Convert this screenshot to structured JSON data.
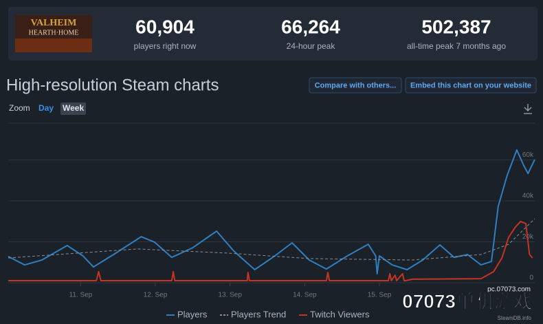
{
  "stats": {
    "game_image": {
      "line1": "VALHEIM",
      "line2": "HEARTH·HOME"
    },
    "items": [
      {
        "value": "60,904",
        "label": "players right now"
      },
      {
        "value": "66,264",
        "label": "24-hour peak"
      },
      {
        "value": "502,387",
        "label": "all-time peak 7 months ago"
      }
    ]
  },
  "toolbar": {
    "heading": "High-resolution Steam charts",
    "buttons": [
      "Compare with others...",
      "Embed this chart on your website"
    ],
    "zoom": "Zoom",
    "zoom_options": [
      "Day",
      "Week"
    ]
  },
  "watermark": {
    "site": "pc.07073.com",
    "brand": "07073单机游戏"
  },
  "chart_data": {
    "type": "line",
    "credit": "SteamDB.info",
    "xlim": [
      10.03,
      17.08
    ],
    "xticks": [
      {
        "value": 11,
        "label": "11. Sep"
      },
      {
        "value": 12,
        "label": "12. Sep"
      },
      {
        "value": 13,
        "label": "13. Sep"
      },
      {
        "value": 14,
        "label": "14. Sep"
      },
      {
        "value": 15,
        "label": "15. Sep"
      }
    ],
    "ylim": [
      0,
      78000
    ],
    "yticks": [
      0,
      {
        "value": 20000,
        "label": "20k"
      },
      {
        "value": 40000,
        "label": "40k"
      },
      {
        "value": 60000,
        "label": "60k"
      }
    ],
    "grid": true,
    "series": [
      {
        "name": "Players",
        "color": "#2f7fc1",
        "style": "solid",
        "x": [
          10.03,
          10.25,
          10.48,
          10.82,
          11.03,
          11.17,
          11.44,
          11.81,
          11.99,
          12.22,
          12.5,
          12.82,
          13.05,
          13.33,
          13.6,
          13.83,
          14.06,
          14.29,
          14.57,
          14.85,
          14.95,
          14.97,
          15.0,
          15.17,
          15.37,
          15.58,
          15.81,
          16.0,
          16.18,
          16.36,
          16.5,
          16.59,
          16.71,
          16.84,
          16.93,
          16.99,
          17.08
        ],
        "values": [
          12800,
          8700,
          11100,
          18200,
          13100,
          7700,
          13800,
          22500,
          19800,
          12400,
          17100,
          25200,
          15500,
          6400,
          13100,
          19500,
          11100,
          6700,
          13100,
          18800,
          13100,
          4400,
          13100,
          8700,
          6400,
          11100,
          18500,
          12400,
          13800,
          8700,
          10400,
          37300,
          52400,
          64900,
          57500,
          53400,
          60200
        ]
      },
      {
        "name": "Players Trend",
        "color": "#8a8f96",
        "style": "dashed",
        "x": [
          10.03,
          11.76,
          12.96,
          14.06,
          15.44,
          16.36,
          16.73,
          17.08
        ],
        "values": [
          12100,
          16500,
          14500,
          11800,
          11100,
          13800,
          18800,
          31300
        ]
      },
      {
        "name": "Twitch Viewers",
        "color": "#c8341f",
        "style": "solid",
        "x": [
          10.03,
          11.21,
          11.24,
          11.27,
          12.22,
          12.24,
          12.26,
          13.23,
          13.24,
          13.26,
          14.29,
          14.31,
          14.33,
          15.12,
          15.14,
          15.16,
          15.21,
          15.23,
          15.31,
          15.33,
          15.35,
          15.44,
          16.36,
          16.53,
          16.64,
          16.73,
          16.82,
          16.89,
          16.96,
          17.01,
          17.05
        ],
        "values": [
          1000,
          1000,
          5400,
          1000,
          1000,
          5400,
          1000,
          1000,
          5000,
          1000,
          1000,
          5000,
          1000,
          1000,
          4400,
          1000,
          3700,
          1000,
          4400,
          1000,
          1000,
          1700,
          2000,
          5400,
          12100,
          22200,
          27200,
          29900,
          28900,
          13800,
          12100
        ]
      }
    ]
  }
}
